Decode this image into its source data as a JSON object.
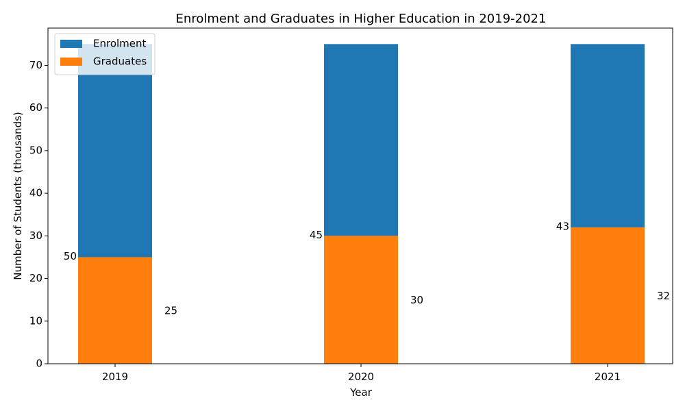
{
  "chart_data": {
    "type": "bar",
    "title": "Enrolment and Graduates in Higher Education in 2019-2021",
    "xlabel": "Year",
    "ylabel": "Number of Students (thousands)",
    "categories": [
      "2019",
      "2020",
      "2021"
    ],
    "ylim": [
      0,
      78.75
    ],
    "yticks": [
      0,
      10,
      20,
      30,
      40,
      50,
      60,
      70
    ],
    "stacked": true,
    "series": [
      {
        "name": "Enrolment",
        "values": [
          50,
          45,
          43
        ],
        "color": "#1f77b4"
      },
      {
        "name": "Graduates",
        "values": [
          25,
          30,
          32
        ],
        "color": "#ff7f0e"
      }
    ],
    "legend_position": "top-left",
    "grid": false
  }
}
